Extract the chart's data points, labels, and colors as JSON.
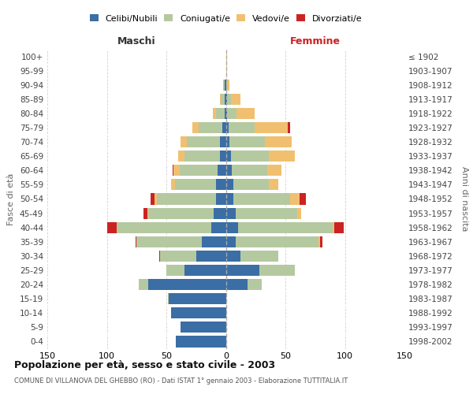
{
  "age_groups": [
    "0-4",
    "5-9",
    "10-14",
    "15-19",
    "20-24",
    "25-29",
    "30-34",
    "35-39",
    "40-44",
    "45-49",
    "50-54",
    "55-59",
    "60-64",
    "65-69",
    "70-74",
    "75-79",
    "80-84",
    "85-89",
    "90-94",
    "95-99",
    "100+"
  ],
  "birth_years": [
    "1998-2002",
    "1993-1997",
    "1988-1992",
    "1983-1987",
    "1978-1982",
    "1973-1977",
    "1968-1972",
    "1963-1967",
    "1958-1962",
    "1953-1957",
    "1948-1952",
    "1943-1947",
    "1938-1942",
    "1933-1937",
    "1928-1932",
    "1923-1927",
    "1918-1922",
    "1913-1917",
    "1908-1912",
    "1903-1907",
    "≤ 1902"
  ],
  "colors": {
    "celibi": "#3a6ea5",
    "coniugati": "#b5c9a0",
    "vedovi": "#f0c070",
    "divorziati": "#cc2222"
  },
  "maschi": {
    "celibi": [
      42,
      38,
      46,
      48,
      65,
      35,
      25,
      20,
      12,
      10,
      8,
      8,
      7,
      5,
      5,
      3,
      1,
      1,
      1,
      0,
      0
    ],
    "coniugati": [
      0,
      0,
      0,
      1,
      8,
      15,
      30,
      55,
      80,
      55,
      50,
      35,
      32,
      30,
      28,
      20,
      7,
      3,
      1,
      0,
      0
    ],
    "vedovi": [
      0,
      0,
      0,
      0,
      0,
      0,
      0,
      0,
      0,
      1,
      2,
      3,
      5,
      5,
      5,
      5,
      3,
      1,
      0,
      0,
      0
    ],
    "divorziati": [
      0,
      0,
      0,
      0,
      0,
      0,
      1,
      1,
      8,
      3,
      3,
      0,
      1,
      0,
      0,
      0,
      0,
      0,
      0,
      0,
      0
    ]
  },
  "femmine": {
    "celibi": [
      0,
      0,
      0,
      0,
      18,
      28,
      12,
      8,
      10,
      8,
      6,
      6,
      5,
      4,
      3,
      2,
      1,
      1,
      0,
      0,
      0
    ],
    "coniugati": [
      0,
      0,
      0,
      0,
      12,
      30,
      32,
      70,
      80,
      52,
      48,
      30,
      30,
      32,
      30,
      22,
      8,
      3,
      1,
      0,
      0
    ],
    "vedovi": [
      0,
      0,
      0,
      0,
      0,
      0,
      0,
      1,
      1,
      3,
      8,
      8,
      12,
      22,
      22,
      28,
      15,
      8,
      2,
      1,
      1
    ],
    "divorziati": [
      0,
      0,
      0,
      0,
      0,
      0,
      0,
      2,
      8,
      0,
      5,
      0,
      0,
      0,
      0,
      2,
      0,
      0,
      0,
      0,
      0
    ]
  },
  "xlim": 150,
  "title": "Popolazione per età, sesso e stato civile - 2003",
  "subtitle": "COMUNE DI VILLANOVA DEL GHEBBO (RO) - Dati ISTAT 1° gennaio 2003 - Elaborazione TUTTITALIA.IT",
  "ylabel_left": "Fasce di età",
  "ylabel_right": "Anni di nascita",
  "legend_labels": [
    "Celibi/Nubili",
    "Coniugati/e",
    "Vedovi/e",
    "Divorziati/e"
  ],
  "bg_color": "#ffffff",
  "grid_color": "#cccccc",
  "maschi_label": "Maschi",
  "femmine_label": "Femmine"
}
